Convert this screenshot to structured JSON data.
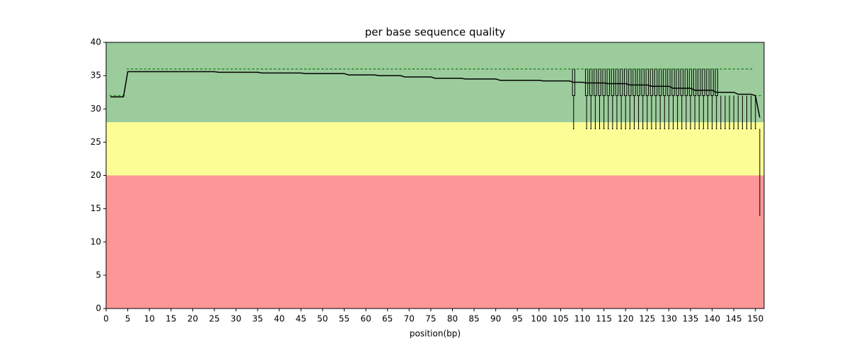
{
  "chart_data": {
    "type": "box",
    "title": "per base sequence quality",
    "x_label": "position(bp)",
    "xlim": [
      0,
      152
    ],
    "ylim": [
      0,
      40
    ],
    "xticks": [
      0,
      5,
      10,
      15,
      20,
      25,
      30,
      35,
      40,
      45,
      50,
      55,
      60,
      65,
      70,
      75,
      80,
      85,
      90,
      95,
      100,
      105,
      110,
      115,
      120,
      125,
      130,
      135,
      140,
      145,
      150
    ],
    "yticks": [
      0,
      5,
      10,
      15,
      20,
      25,
      30,
      35,
      40
    ],
    "bands": [
      {
        "range": [
          0,
          20
        ],
        "color": "#fd9696"
      },
      {
        "range": [
          20,
          28
        ],
        "color": "#fdfd96"
      },
      {
        "range": [
          28,
          40
        ],
        "color": "#9ccc9c"
      }
    ],
    "mean_color": "#000000",
    "median_color": "#2e8b2e",
    "box_color": "#000000",
    "x": [
      1,
      2,
      3,
      4,
      5,
      6,
      7,
      8,
      9,
      10,
      11,
      12,
      13,
      14,
      15,
      16,
      17,
      18,
      19,
      20,
      21,
      22,
      23,
      24,
      25,
      26,
      27,
      28,
      29,
      30,
      31,
      32,
      33,
      34,
      35,
      36,
      37,
      38,
      39,
      40,
      41,
      42,
      43,
      44,
      45,
      46,
      47,
      48,
      49,
      50,
      51,
      52,
      53,
      54,
      55,
      56,
      57,
      58,
      59,
      60,
      61,
      62,
      63,
      64,
      65,
      66,
      67,
      68,
      69,
      70,
      71,
      72,
      73,
      74,
      75,
      76,
      77,
      78,
      79,
      80,
      81,
      82,
      83,
      84,
      85,
      86,
      87,
      88,
      89,
      90,
      91,
      92,
      93,
      94,
      95,
      96,
      97,
      98,
      99,
      100,
      101,
      102,
      103,
      104,
      105,
      106,
      107,
      108,
      109,
      110,
      111,
      112,
      113,
      114,
      115,
      116,
      117,
      118,
      119,
      120,
      121,
      122,
      123,
      124,
      125,
      126,
      127,
      128,
      129,
      130,
      131,
      132,
      133,
      134,
      135,
      136,
      137,
      138,
      139,
      140,
      141,
      142,
      143,
      144,
      145,
      146,
      147,
      148,
      149,
      150,
      151
    ],
    "mean": [
      31.8,
      31.8,
      31.8,
      31.8,
      35.6,
      35.6,
      35.6,
      35.6,
      35.6,
      35.6,
      35.6,
      35.6,
      35.6,
      35.6,
      35.6,
      35.6,
      35.6,
      35.6,
      35.6,
      35.6,
      35.6,
      35.6,
      35.6,
      35.6,
      35.6,
      35.5,
      35.5,
      35.5,
      35.5,
      35.5,
      35.5,
      35.5,
      35.5,
      35.5,
      35.5,
      35.4,
      35.4,
      35.4,
      35.4,
      35.4,
      35.4,
      35.4,
      35.4,
      35.4,
      35.4,
      35.3,
      35.3,
      35.3,
      35.3,
      35.3,
      35.3,
      35.3,
      35.3,
      35.3,
      35.3,
      35.1,
      35.1,
      35.1,
      35.1,
      35.1,
      35.1,
      35.1,
      35.0,
      35.0,
      35.0,
      35.0,
      35.0,
      35.0,
      34.8,
      34.8,
      34.8,
      34.8,
      34.8,
      34.8,
      34.8,
      34.6,
      34.6,
      34.6,
      34.6,
      34.6,
      34.6,
      34.6,
      34.5,
      34.5,
      34.5,
      34.5,
      34.5,
      34.5,
      34.5,
      34.5,
      34.3,
      34.3,
      34.3,
      34.3,
      34.3,
      34.3,
      34.3,
      34.3,
      34.3,
      34.3,
      34.2,
      34.2,
      34.2,
      34.2,
      34.2,
      34.2,
      34.2,
      34.0,
      34.0,
      34.0,
      33.9,
      33.9,
      33.9,
      33.9,
      33.9,
      33.8,
      33.8,
      33.8,
      33.8,
      33.8,
      33.6,
      33.6,
      33.6,
      33.6,
      33.6,
      33.4,
      33.4,
      33.4,
      33.4,
      33.4,
      33.1,
      33.1,
      33.1,
      33.1,
      33.1,
      32.8,
      32.8,
      32.8,
      32.8,
      32.8,
      32.5,
      32.5,
      32.5,
      32.5,
      32.5,
      32.2,
      32.2,
      32.2,
      32.2,
      32.0,
      28.7
    ],
    "median": [
      32,
      32,
      32,
      32,
      36,
      36,
      36,
      36,
      36,
      36,
      36,
      36,
      36,
      36,
      36,
      36,
      36,
      36,
      36,
      36,
      36,
      36,
      36,
      36,
      36,
      36,
      36,
      36,
      36,
      36,
      36,
      36,
      36,
      36,
      36,
      36,
      36,
      36,
      36,
      36,
      36,
      36,
      36,
      36,
      36,
      36,
      36,
      36,
      36,
      36,
      36,
      36,
      36,
      36,
      36,
      36,
      36,
      36,
      36,
      36,
      36,
      36,
      36,
      36,
      36,
      36,
      36,
      36,
      36,
      36,
      36,
      36,
      36,
      36,
      36,
      36,
      36,
      36,
      36,
      36,
      36,
      36,
      36,
      36,
      36,
      36,
      36,
      36,
      36,
      36,
      36,
      36,
      36,
      36,
      36,
      36,
      36,
      36,
      36,
      36,
      36,
      36,
      36,
      36,
      36,
      36,
      36,
      36,
      36,
      36,
      36,
      36,
      36,
      36,
      36,
      36,
      36,
      36,
      36,
      36,
      36,
      36,
      36,
      36,
      36,
      36,
      36,
      36,
      36,
      36,
      36,
      36,
      36,
      36,
      36,
      36,
      36,
      36,
      36,
      36,
      36,
      36,
      36,
      36,
      36,
      36,
      36,
      36,
      36,
      32,
      32
    ],
    "q1": [
      32,
      32,
      32,
      32,
      36,
      36,
      36,
      36,
      36,
      36,
      36,
      36,
      36,
      36,
      36,
      36,
      36,
      36,
      36,
      36,
      36,
      36,
      36,
      36,
      36,
      36,
      36,
      36,
      36,
      36,
      36,
      36,
      36,
      36,
      36,
      36,
      36,
      36,
      36,
      36,
      36,
      36,
      36,
      36,
      36,
      36,
      36,
      36,
      36,
      36,
      36,
      36,
      36,
      36,
      36,
      36,
      36,
      36,
      36,
      36,
      36,
      36,
      36,
      36,
      36,
      36,
      36,
      36,
      36,
      36,
      36,
      36,
      36,
      36,
      36,
      36,
      36,
      36,
      36,
      36,
      36,
      36,
      36,
      36,
      36,
      36,
      36,
      36,
      36,
      36,
      36,
      36,
      36,
      36,
      36,
      36,
      36,
      36,
      36,
      36,
      36,
      36,
      36,
      36,
      36,
      36,
      36,
      32,
      36,
      36,
      32,
      32,
      32,
      32,
      32,
      32,
      32,
      32,
      32,
      32,
      32,
      32,
      32,
      32,
      32,
      32,
      32,
      32,
      32,
      32,
      32,
      32,
      32,
      32,
      32,
      32,
      32,
      32,
      32,
      32,
      32,
      32,
      32,
      32,
      32,
      32,
      32,
      32,
      32,
      32,
      27
    ],
    "q3": [
      32,
      32,
      32,
      32,
      36,
      36,
      36,
      36,
      36,
      36,
      36,
      36,
      36,
      36,
      36,
      36,
      36,
      36,
      36,
      36,
      36,
      36,
      36,
      36,
      36,
      36,
      36,
      36,
      36,
      36,
      36,
      36,
      36,
      36,
      36,
      36,
      36,
      36,
      36,
      36,
      36,
      36,
      36,
      36,
      36,
      36,
      36,
      36,
      36,
      36,
      36,
      36,
      36,
      36,
      36,
      36,
      36,
      36,
      36,
      36,
      36,
      36,
      36,
      36,
      36,
      36,
      36,
      36,
      36,
      36,
      36,
      36,
      36,
      36,
      36,
      36,
      36,
      36,
      36,
      36,
      36,
      36,
      36,
      36,
      36,
      36,
      36,
      36,
      36,
      36,
      36,
      36,
      36,
      36,
      36,
      36,
      36,
      36,
      36,
      36,
      36,
      36,
      36,
      36,
      36,
      36,
      36,
      36,
      36,
      36,
      36,
      36,
      36,
      36,
      36,
      36,
      36,
      36,
      36,
      36,
      36,
      36,
      36,
      36,
      36,
      36,
      36,
      36,
      36,
      36,
      36,
      36,
      36,
      36,
      36,
      36,
      36,
      36,
      36,
      36,
      36
    ],
    "whisker_low": [
      32,
      32,
      32,
      32,
      36,
      36,
      36,
      36,
      36,
      36,
      36,
      36,
      36,
      36,
      36,
      36,
      36,
      36,
      36,
      36,
      36,
      36,
      36,
      36,
      36,
      36,
      36,
      36,
      36,
      36,
      36,
      36,
      36,
      36,
      36,
      36,
      36,
      36,
      36,
      36,
      36,
      36,
      36,
      36,
      36,
      36,
      36,
      36,
      36,
      36,
      36,
      36,
      36,
      36,
      36,
      36,
      36,
      36,
      36,
      36,
      36,
      36,
      36,
      36,
      36,
      36,
      36,
      36,
      36,
      36,
      36,
      36,
      36,
      36,
      36,
      36,
      36,
      36,
      36,
      36,
      36,
      36,
      36,
      36,
      36,
      36,
      36,
      36,
      36,
      36,
      36,
      36,
      36,
      36,
      36,
      36,
      36,
      36,
      36,
      36,
      36,
      36,
      36,
      36,
      36,
      36,
      36,
      27,
      36,
      36,
      27,
      27,
      27,
      27,
      27,
      27,
      27,
      27,
      27,
      27,
      27,
      27,
      27,
      27,
      27,
      27,
      27,
      27,
      27,
      27,
      27,
      27,
      27,
      27,
      27,
      27,
      27,
      27,
      27,
      27,
      27,
      27,
      27,
      27,
      27,
      27,
      27,
      27,
      27,
      27,
      14
    ],
    "whisker_high": [
      32,
      32,
      32,
      32,
      36,
      36,
      36,
      36,
      36,
      36,
      36,
      36,
      36,
      36,
      36,
      36,
      36,
      36,
      36,
      36,
      36,
      36,
      36,
      36,
      36,
      36,
      36,
      36,
      36,
      36,
      36,
      36,
      36,
      36,
      36,
      36,
      36,
      36,
      36,
      36,
      36,
      36,
      36,
      36,
      36,
      36,
      36,
      36,
      36,
      36,
      36,
      36,
      36,
      36,
      36,
      36,
      36,
      36,
      36,
      36,
      36,
      36,
      36,
      36,
      36,
      36,
      36,
      36,
      36,
      36,
      36,
      36,
      36,
      36,
      36,
      36,
      36,
      36,
      36,
      36,
      36,
      36,
      36,
      36,
      36,
      36,
      36,
      36,
      36,
      36,
      36,
      36,
      36,
      36,
      36,
      36,
      36,
      36,
      36,
      36,
      36,
      36,
      36,
      36,
      36,
      36,
      36,
      36,
      36,
      36,
      36,
      36,
      36,
      36,
      36,
      36,
      36,
      36,
      36,
      36,
      36,
      36,
      36,
      36,
      36,
      36,
      36,
      36,
      36,
      36,
      36,
      36,
      36,
      36,
      36,
      36,
      36,
      36,
      36,
      36,
      36
    ]
  }
}
